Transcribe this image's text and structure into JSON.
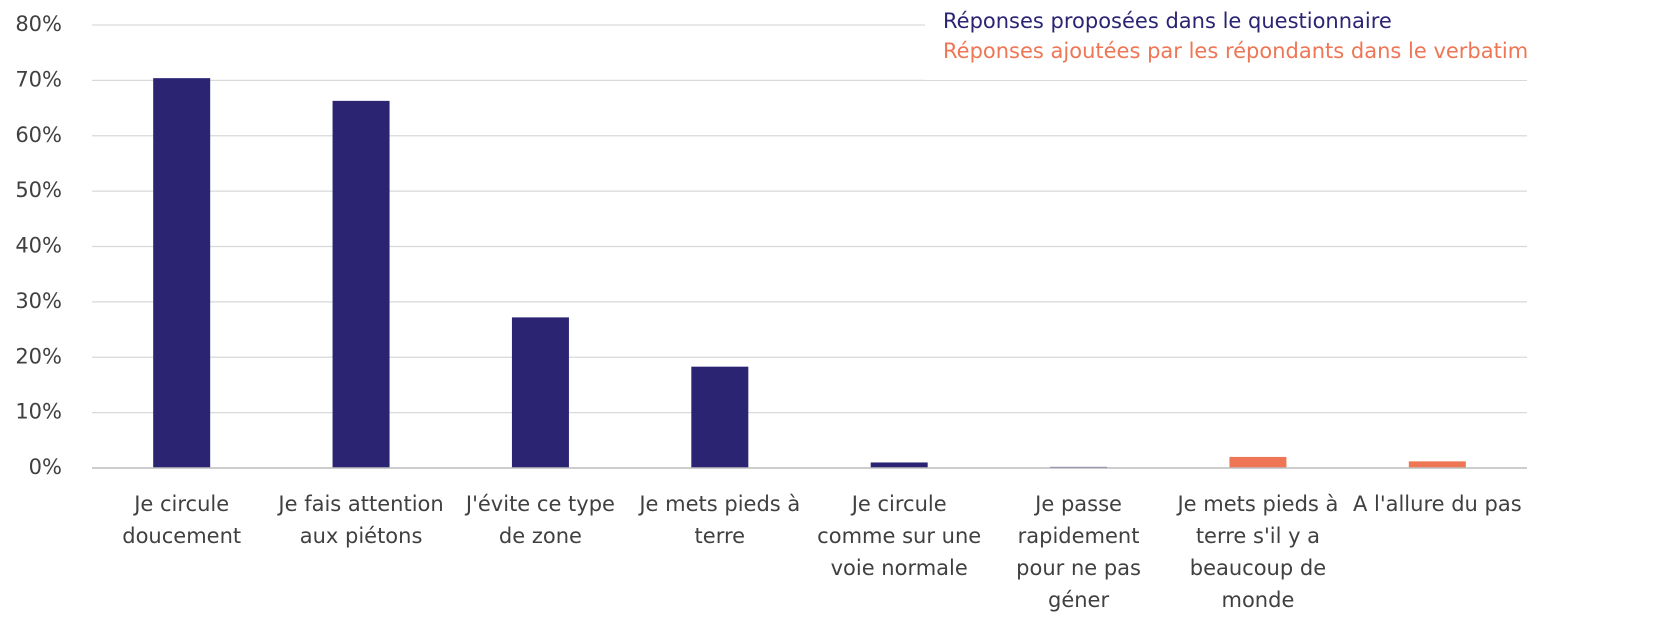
{
  "chart_data": {
    "type": "bar",
    "categories": [
      "Je circule doucement",
      "Je fais attention aux piétons",
      "J'évite ce type de zone",
      "Je mets pieds à terre",
      "Je circule comme sur une voie normale",
      "Je passe rapidement pour ne pas géner",
      "Je mets pieds à terre s'il y a beaucoup de monde",
      "A l'allure du pas"
    ],
    "values": [
      70.4,
      66.3,
      27.2,
      18.3,
      1,
      0.2,
      2,
      1.2
    ],
    "colors": [
      "#2a2472",
      "#2a2472",
      "#2a2472",
      "#2a2472",
      "#2a2472",
      "#2a2472",
      "#ee7655",
      "#ee7655"
    ],
    "legend": [
      {
        "name": "Réponses proposées dans le questionnaire",
        "color": "#2a2472"
      },
      {
        "name": "Réponses ajoutées par les répondants dans le verbatim",
        "color": "#ee7655"
      }
    ],
    "legend_position": "upper right",
    "ylim": [
      0,
      80
    ],
    "yticks": [
      {
        "value": 0,
        "label": "0%"
      },
      {
        "value": 10,
        "label": "10%"
      },
      {
        "value": 20,
        "label": "20%"
      },
      {
        "value": 30,
        "label": "30%"
      },
      {
        "value": 40,
        "label": "40%"
      },
      {
        "value": 50,
        "label": "50%"
      },
      {
        "value": 60,
        "label": "60%"
      },
      {
        "value": 70,
        "label": "70%"
      },
      {
        "value": 80,
        "label": "80%"
      }
    ],
    "grid": true
  }
}
